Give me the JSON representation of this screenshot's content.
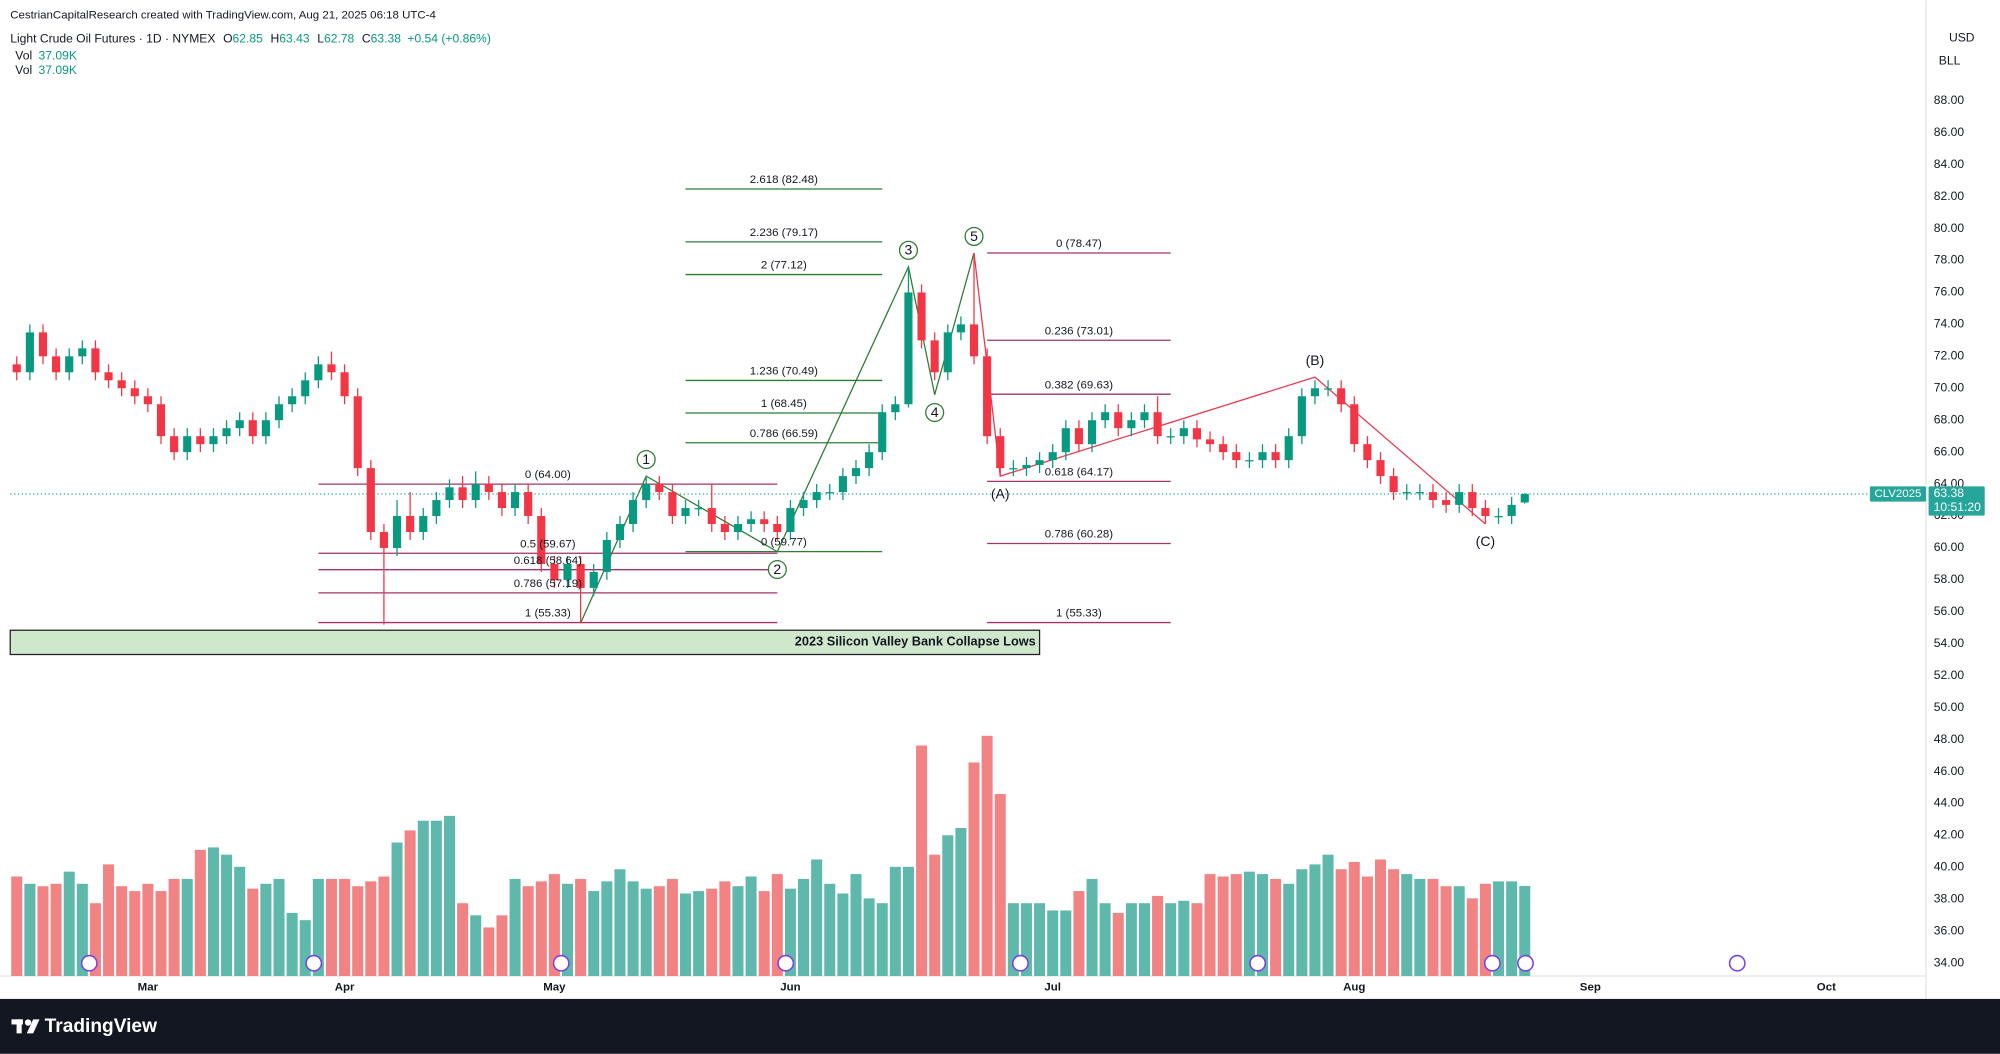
{
  "header": {
    "attribution": "CestrianCapitalResearch created with TradingView.com, Aug 21, 2025 06:18 UTC-4",
    "symbol": "Light Crude Oil Futures · 1D · NYMEX",
    "ohlc_keys": [
      "O",
      "H",
      "L",
      "C"
    ],
    "change": "+0.54 (+0.86%)",
    "volume_titles": [
      "Vol",
      "Vol"
    ],
    "volume_value_label": "37.09K",
    "currency": "USD",
    "unit": "BLL",
    "contract": "CLV2025",
    "countdown": "10:51:20",
    "brand": "TradingView"
  },
  "chart_data": {
    "type": "candlestick",
    "open": [
      71.5,
      71,
      73.5,
      72,
      71,
      72,
      72.5,
      71,
      70.5,
      70,
      69.5,
      69,
      67,
      66,
      67,
      66.5,
      67,
      67.5,
      68,
      67,
      68,
      69,
      69.5,
      70.5,
      71.5,
      71,
      69.5,
      65,
      61,
      60,
      62,
      61,
      62,
      63,
      63.8,
      63,
      64,
      63.5,
      62.5,
      63.5,
      62,
      59,
      58,
      59,
      57.5,
      58.5,
      60.5,
      61.5,
      63,
      64,
      63.5,
      62,
      62.5,
      62.5,
      61.5,
      61,
      61.5,
      61.8,
      61.5,
      61,
      62.5,
      63,
      63.5,
      63.5,
      64.5,
      65,
      66,
      68.5,
      69,
      76,
      73,
      71,
      73.5,
      74,
      72,
      67,
      65,
      65,
      65.2,
      65.5,
      66,
      67.5,
      66.5,
      68,
      68.5,
      67.5,
      68,
      68.5,
      67,
      67,
      67.5,
      66.8,
      66.5,
      66,
      65.5,
      65.5,
      66,
      65.5,
      67,
      69.5,
      70,
      70,
      69,
      66.5,
      65.5,
      64.5,
      63.5,
      63.5,
      63.5,
      63,
      62.7,
      63.5,
      62.5,
      62,
      62,
      62.85
    ],
    "high": [
      72,
      74,
      74,
      72.5,
      72.5,
      73,
      73,
      71.5,
      71,
      70.5,
      70,
      69.5,
      67.5,
      67.5,
      67.5,
      67.5,
      68,
      68.5,
      68.5,
      68.5,
      69.5,
      70,
      71,
      72,
      72.3,
      71.5,
      70,
      65.5,
      61.5,
      63,
      63.5,
      62.5,
      63.5,
      64.3,
      64.5,
      64.8,
      64.5,
      64,
      64,
      64,
      62.5,
      59.5,
      59.5,
      59.5,
      59,
      61,
      62,
      63.5,
      64.5,
      64.5,
      64,
      63,
      63,
      64,
      62,
      62,
      62.3,
      62.3,
      62,
      63,
      63.5,
      64,
      64,
      65,
      65.5,
      66.5,
      69,
      69.5,
      77.6,
      76.5,
      73.5,
      74,
      74.5,
      78.47,
      72.5,
      67.5,
      65.5,
      65.7,
      66,
      66.5,
      68,
      68,
      68.5,
      69,
      69,
      68.5,
      69,
      69.5,
      67.5,
      68,
      68,
      67.3,
      67,
      66.5,
      66,
      66.5,
      66.5,
      67.5,
      70,
      70.5,
      70.5,
      70.5,
      69.5,
      67,
      66,
      65,
      64,
      64,
      64,
      63.5,
      64,
      64,
      63,
      62.5,
      63.2,
      63.43
    ],
    "low": [
      70.5,
      70.5,
      71.5,
      70.5,
      70.5,
      71.5,
      70.5,
      70,
      69.5,
      69,
      68.5,
      66.5,
      65.5,
      65.5,
      66,
      66,
      66.5,
      67,
      66.5,
      66.5,
      67.5,
      68.5,
      69,
      70,
      70.5,
      69,
      64.5,
      60.5,
      55.2,
      59.5,
      60.5,
      60.5,
      61.5,
      62.5,
      62.5,
      62.5,
      63,
      62,
      62,
      61.5,
      58.5,
      57.5,
      57.5,
      55.3,
      57,
      58,
      60,
      61,
      62.5,
      63,
      61.5,
      61.5,
      62,
      61,
      60.5,
      60.5,
      61,
      61,
      60.5,
      60.5,
      62,
      62.5,
      63,
      63,
      64,
      64.5,
      65.5,
      68,
      68.8,
      72.5,
      70.5,
      70.5,
      73,
      71.5,
      66.5,
      64.5,
      64.5,
      64.5,
      64.7,
      65,
      65.5,
      66,
      66,
      67.5,
      67,
      67,
      67.5,
      66.5,
      66.5,
      66.5,
      66.3,
      66,
      65.5,
      65,
      65,
      65,
      65,
      65,
      66.5,
      69,
      69.5,
      68.5,
      66,
      65,
      64,
      63,
      63,
      63,
      62.5,
      62.2,
      62.2,
      62,
      61.5,
      61.5,
      61.5,
      62.78
    ],
    "close": [
      71,
      73.5,
      72,
      71,
      72,
      72.5,
      71,
      70.5,
      70,
      69.5,
      69,
      67,
      66,
      67,
      66.5,
      67,
      67.5,
      68,
      67,
      68,
      69,
      69.5,
      70.5,
      71.5,
      71,
      69.5,
      65,
      61,
      60,
      62,
      61,
      62,
      63,
      63.8,
      63,
      64,
      63.5,
      62.5,
      63.5,
      62,
      59,
      58,
      59,
      57.5,
      58.5,
      60.5,
      61.5,
      63,
      64,
      63.5,
      62,
      62.5,
      62.5,
      61.5,
      61,
      61.5,
      61.8,
      61.5,
      61,
      62.5,
      63,
      63.5,
      63.5,
      64.5,
      65,
      66,
      68.5,
      69,
      76,
      73,
      71,
      73.5,
      74,
      72,
      67,
      65,
      65,
      65.2,
      65.5,
      66,
      67.5,
      66.5,
      68,
      68.5,
      67.5,
      68,
      68.5,
      67,
      67,
      67.5,
      66.8,
      66.5,
      66,
      65.5,
      65.5,
      66,
      65.5,
      67,
      69.5,
      70,
      70,
      69,
      66.5,
      65.5,
      64.5,
      63.5,
      63.5,
      63.5,
      63,
      62.7,
      63.5,
      62.5,
      62,
      62,
      62.7,
      63.38
    ],
    "volume": [
      41,
      38,
      37,
      38,
      43,
      38,
      30,
      46,
      37,
      35,
      38,
      35,
      40,
      40,
      52,
      53,
      50,
      45,
      36,
      38,
      40,
      26,
      23,
      40,
      40,
      40,
      37,
      39,
      41,
      55,
      60,
      64,
      64,
      66,
      30,
      25,
      20,
      25,
      40,
      37,
      39,
      42,
      38,
      40,
      35,
      39,
      44,
      39,
      36,
      37,
      40,
      34,
      35,
      36,
      39,
      37,
      41,
      35,
      42,
      36,
      40,
      48,
      38,
      34,
      42,
      32,
      30,
      45,
      45,
      95,
      50,
      58,
      61,
      88,
      99,
      75,
      30,
      30,
      30,
      27,
      27,
      35,
      40,
      30,
      26,
      30,
      30,
      33,
      30,
      31,
      30,
      42,
      41,
      42,
      43,
      42,
      40,
      38,
      44,
      46,
      50,
      44,
      47,
      41,
      48,
      44,
      42,
      40,
      40,
      37,
      37,
      32,
      38,
      39,
      39,
      37.09
    ],
    "up_color": "#089981",
    "down_color": "#f23645",
    "volume_up_color": "#5fb8ac",
    "volume_down_color": "#f28384",
    "last_price_color": "#26a69a",
    "xlim": [
      -0.5,
      145.6
    ],
    "xticks": [
      {
        "value": 10,
        "label": "Mar"
      },
      {
        "value": 25,
        "label": "Apr"
      },
      {
        "value": 41,
        "label": "May"
      },
      {
        "value": 59,
        "label": "Jun"
      },
      {
        "value": 79,
        "label": "Jul"
      },
      {
        "value": 102,
        "label": "Aug"
      },
      {
        "value": 120,
        "label": "Sep"
      },
      {
        "value": 138,
        "label": "Oct"
      }
    ],
    "ylim": [
      33.2,
      93.66
    ],
    "yticks": [
      {
        "value": 34,
        "label": "34.00"
      },
      {
        "value": 36,
        "label": "36.00"
      },
      {
        "value": 38,
        "label": "38.00"
      },
      {
        "value": 40,
        "label": "40.00"
      },
      {
        "value": 42,
        "label": "42.00"
      },
      {
        "value": 44,
        "label": "44.00"
      },
      {
        "value": 46,
        "label": "46.00"
      },
      {
        "value": 48,
        "label": "48.00"
      },
      {
        "value": 50,
        "label": "50.00"
      },
      {
        "value": 52,
        "label": "52.00"
      },
      {
        "value": 54,
        "label": "54.00"
      },
      {
        "value": 56,
        "label": "56.00"
      },
      {
        "value": 58,
        "label": "58.00"
      },
      {
        "value": 60,
        "label": "60.00"
      },
      {
        "value": 62,
        "label": "62.00"
      },
      {
        "value": 64,
        "label": "64.00"
      },
      {
        "value": 66,
        "label": "66.00"
      },
      {
        "value": 68,
        "label": "68.00"
      },
      {
        "value": 70,
        "label": "70.00"
      },
      {
        "value": 72,
        "label": "72.00"
      },
      {
        "value": 74,
        "label": "74.00"
      },
      {
        "value": 76,
        "label": "76.00"
      },
      {
        "value": 78,
        "label": "78.00"
      },
      {
        "value": 80,
        "label": "80.00"
      },
      {
        "value": 82,
        "label": "82.00"
      },
      {
        "value": 84,
        "label": "84.00"
      },
      {
        "value": 86,
        "label": "86.00"
      },
      {
        "value": 88,
        "label": "88.00"
      }
    ],
    "vlim": [
      0,
      398
    ],
    "grid": false,
    "fibs": [
      {
        "color": "#a3336d",
        "x": [
          23,
          58
        ],
        "levels": [
          {
            "value": 64.0,
            "label": "0 (64.00)"
          },
          {
            "value": 59.67,
            "label": "0.5 (59.67)"
          },
          {
            "value": 58.64,
            "label": "0.618 (58.64)"
          },
          {
            "value": 57.19,
            "label": "0.786 (57.19)"
          },
          {
            "value": 55.33,
            "label": "1 (55.33)"
          }
        ]
      },
      {
        "color": "#2e7d32",
        "x": [
          51,
          66
        ],
        "levels": [
          {
            "value": 59.77,
            "label": "0 (59.77)"
          },
          {
            "value": 66.59,
            "label": "0.786 (66.59)"
          },
          {
            "value": 68.45,
            "label": "1 (68.45)"
          },
          {
            "value": 70.49,
            "label": "1.236 (70.49)"
          },
          {
            "value": 77.12,
            "label": "2 (77.12)"
          },
          {
            "value": 79.17,
            "label": "2.236 (79.17)"
          },
          {
            "value": 82.48,
            "label": "2.618 (82.48)"
          }
        ]
      },
      {
        "color": "#a3336d",
        "x": [
          74,
          88
        ],
        "levels": [
          {
            "value": 78.47,
            "label": "0 (78.47)"
          },
          {
            "value": 73.01,
            "label": "0.236 (73.01)"
          },
          {
            "value": 69.63,
            "label": "0.382 (69.63)"
          },
          {
            "value": 64.17,
            "label": "0.618 (64.17)"
          },
          {
            "value": 60.28,
            "label": "0.786 (60.28)"
          },
          {
            "value": 55.33,
            "label": "1 (55.33)"
          }
        ]
      }
    ],
    "waves": [
      {
        "color": "#2e7d32",
        "circled": true,
        "x": [
          43,
          48,
          58,
          68,
          70,
          73
        ],
        "y": [
          55.3,
          64.5,
          59.77,
          77.6,
          69.6,
          78.47
        ],
        "labels": [
          null,
          "1",
          "2",
          "3",
          "4",
          "5"
        ]
      },
      {
        "color": "#e8384f",
        "circled": false,
        "x": [
          73,
          75,
          99,
          112
        ],
        "y": [
          78.47,
          64.5,
          70.7,
          61.5
        ],
        "labels": [
          null,
          "(A)",
          "(B)",
          "(C)"
        ]
      }
    ],
    "zone": {
      "label": "2023 Silicon Valley Bank Collapse Lows",
      "x": [
        -0.5,
        78
      ],
      "ylim": [
        53.33,
        54.85
      ],
      "color": "#cfe8cc"
    }
  }
}
